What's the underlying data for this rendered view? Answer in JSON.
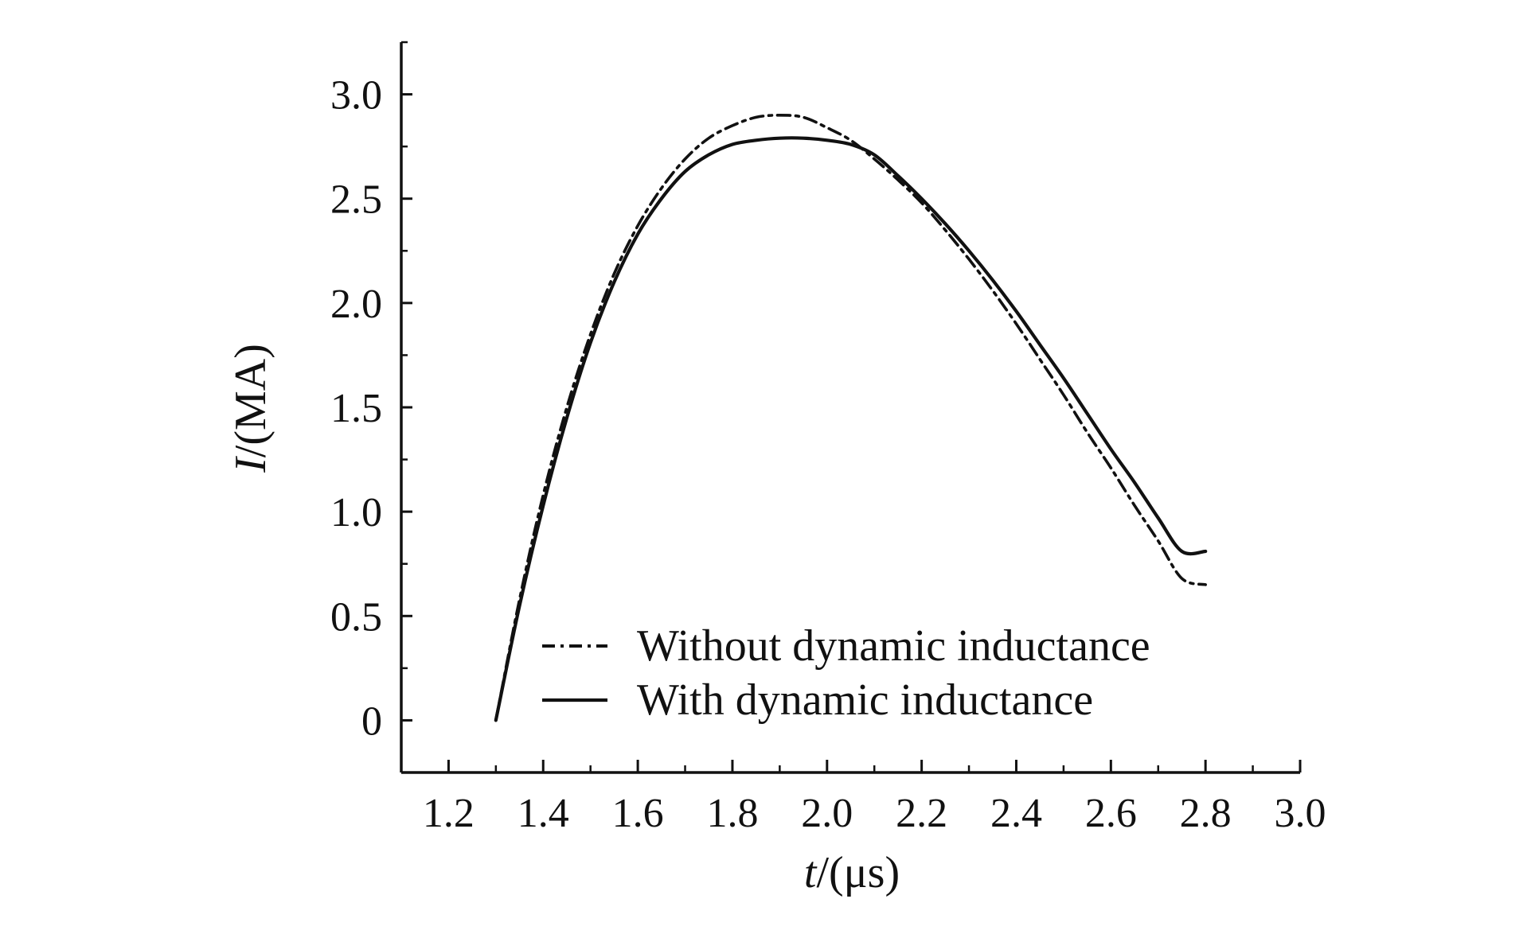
{
  "colors": {
    "ink": "#111111",
    "background": "#ffffff"
  },
  "chart_data": {
    "type": "line",
    "title": "",
    "xlabel": {
      "var": "t",
      "unit": "/(μs)"
    },
    "ylabel": {
      "var": "I",
      "unit": "/(MA)"
    },
    "xlim": [
      1.1,
      3.0
    ],
    "ylim": [
      -0.25,
      3.25
    ],
    "xticks": [
      1.2,
      1.4,
      1.6,
      1.8,
      2.0,
      2.2,
      2.4,
      2.6,
      2.8,
      3.0
    ],
    "xtick_labels": [
      "1.2",
      "1.4",
      "1.6",
      "1.8",
      "2.0",
      "2.2",
      "2.4",
      "2.6",
      "2.8",
      "3.0"
    ],
    "x_minor_step": 0.1,
    "yticks": [
      0,
      0.5,
      1.0,
      1.5,
      2.0,
      2.5,
      3.0
    ],
    "ytick_labels": [
      "0",
      "0.5",
      "1.0",
      "1.5",
      "2.0",
      "2.5",
      "3.0"
    ],
    "y_minor_step": 0.25,
    "grid": false,
    "legend_position": "bottom-center",
    "x": [
      1.3,
      1.35,
      1.4,
      1.45,
      1.5,
      1.55,
      1.6,
      1.65,
      1.7,
      1.75,
      1.8,
      1.85,
      1.9,
      1.95,
      2.0,
      2.05,
      2.1,
      2.15,
      2.2,
      2.25,
      2.3,
      2.35,
      2.4,
      2.45,
      2.5,
      2.55,
      2.6,
      2.65,
      2.7,
      2.75,
      2.8
    ],
    "series": [
      {
        "name": "Without dynamic inductance",
        "style": "dashdot",
        "values": [
          0.0,
          0.58,
          1.08,
          1.5,
          1.85,
          2.14,
          2.37,
          2.55,
          2.69,
          2.79,
          2.85,
          2.89,
          2.9,
          2.89,
          2.84,
          2.78,
          2.69,
          2.59,
          2.48,
          2.35,
          2.21,
          2.06,
          1.9,
          1.73,
          1.56,
          1.38,
          1.21,
          1.03,
          0.86,
          0.68,
          0.65
        ]
      },
      {
        "name": "With dynamic inductance",
        "style": "solid",
        "values": [
          0.0,
          0.55,
          1.03,
          1.45,
          1.81,
          2.1,
          2.33,
          2.5,
          2.63,
          2.71,
          2.76,
          2.78,
          2.79,
          2.79,
          2.78,
          2.76,
          2.71,
          2.61,
          2.5,
          2.38,
          2.25,
          2.11,
          1.96,
          1.8,
          1.64,
          1.47,
          1.3,
          1.14,
          0.97,
          0.81,
          0.81
        ]
      }
    ]
  }
}
